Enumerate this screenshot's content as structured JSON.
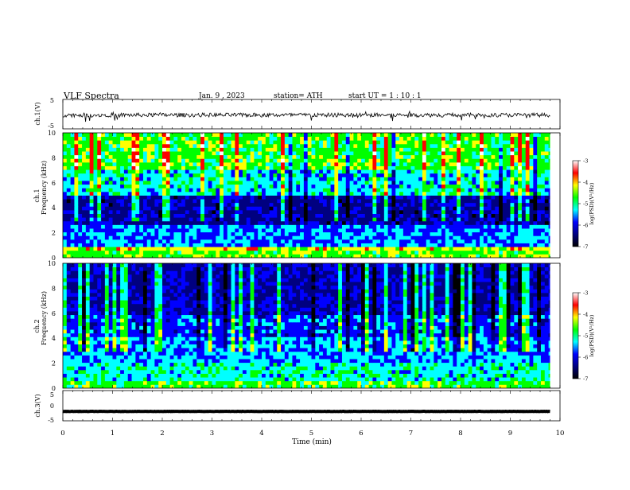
{
  "header": {
    "title": "VLF  Spectra",
    "date": "Jan.  9  , 2023",
    "station": "station= ATH",
    "start": "start  UT  =   1  : 10 : 1"
  },
  "colormap": {
    "label": "log(PSD)(V²/Hz)",
    "ticks": [
      "-3",
      "-4",
      "-5",
      "-6",
      "-7"
    ],
    "stops": [
      "#ffffff",
      "#ff0000",
      "#ffff00",
      "#00ff00",
      "#00ffff",
      "#0000ff",
      "#000080",
      "#000000"
    ]
  },
  "chart_data": [
    {
      "type": "line",
      "panel": "ch.1 waveform",
      "ylabel": "ch.1(V)",
      "ylim": [
        -5,
        5
      ],
      "yticks": [
        "5",
        "-5"
      ],
      "x_range": [
        0,
        9.8
      ],
      "baseline": -0.3,
      "noise_amplitude": 0.7,
      "trace_color": "#000000"
    },
    {
      "type": "heatmap",
      "panel": "ch.1 spectrogram",
      "channel_label": "ch.1",
      "ylabel": "Frequency  (kHz)",
      "ylim": [
        0,
        10
      ],
      "yticks": [
        "0",
        "2",
        "4",
        "6",
        "8",
        "10"
      ],
      "x_range": [
        0,
        9.8
      ],
      "zlim": [
        -7,
        -3
      ],
      "zlabel": "log(PSD)(V²/Hz)"
    },
    {
      "type": "heatmap",
      "panel": "ch.2 spectrogram",
      "channel_label": "ch.2",
      "ylabel": "Frequency  (kHz)",
      "ylim": [
        0,
        10
      ],
      "yticks": [
        "0",
        "2",
        "4",
        "6",
        "8",
        "10"
      ],
      "x_range": [
        0,
        9.8
      ],
      "zlim": [
        -7,
        -3
      ],
      "zlabel": "log(PSD)(V²/Hz)"
    },
    {
      "type": "line",
      "panel": "ch.3 waveform",
      "ylabel": "ch.3(V)",
      "ylim": [
        -5,
        5
      ],
      "yticks": [
        "5",
        "0",
        "-5"
      ],
      "x_range": [
        0,
        9.8
      ],
      "baseline": -1.9,
      "noise_amplitude": 0.05,
      "trace_color": "#000000"
    }
  ],
  "x_axis": {
    "label": "Time  (min)",
    "xlim": [
      0,
      10
    ],
    "ticks": [
      "0",
      "1",
      "2",
      "3",
      "4",
      "5",
      "6",
      "7",
      "8",
      "9",
      "10"
    ]
  }
}
